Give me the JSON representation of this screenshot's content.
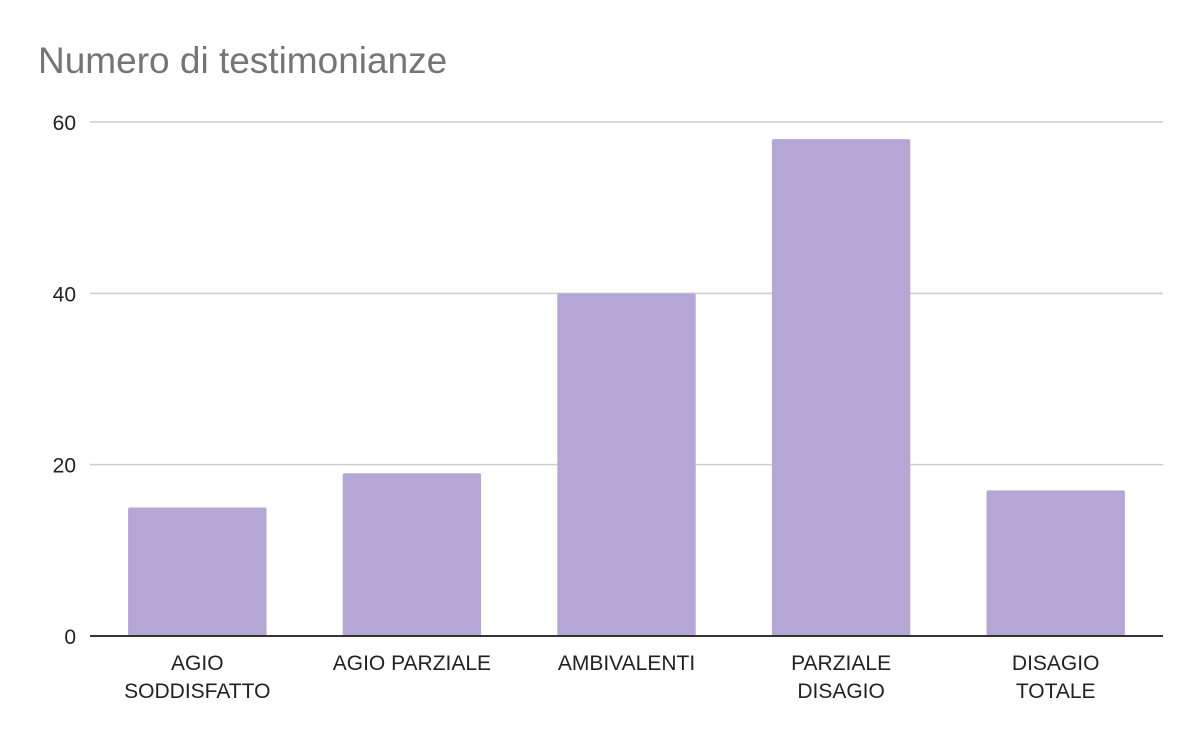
{
  "chart_data": {
    "type": "bar",
    "title": "Numero di testimonianze",
    "categories": [
      [
        "AGIO",
        "SODDISFATTO"
      ],
      [
        "AGIO PARZIALE"
      ],
      [
        "AMBIVALENTI"
      ],
      [
        "PARZIALE",
        "DISAGIO"
      ],
      [
        "DISAGIO",
        "TOTALE"
      ]
    ],
    "values": [
      15,
      19,
      40,
      58,
      17
    ],
    "ylim": [
      0,
      60
    ],
    "yticks": [
      0,
      20,
      40,
      60
    ],
    "grid": true,
    "bar_color": "#b4a7d6"
  }
}
